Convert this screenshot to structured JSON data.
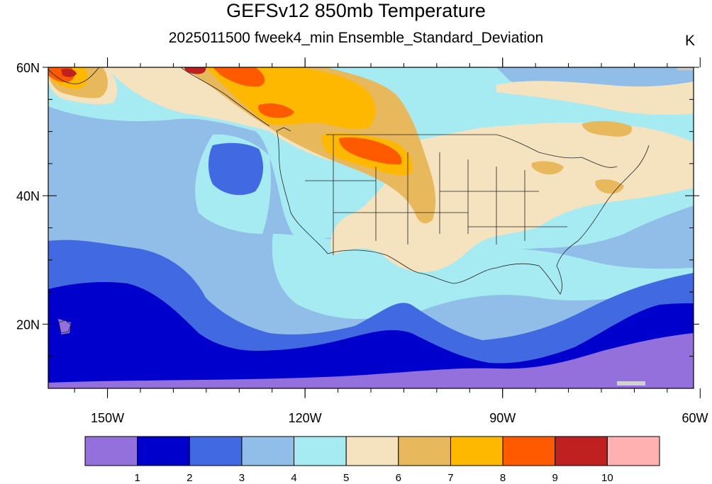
{
  "header": {
    "title": "GEFSv12 850mb Temperature",
    "subtitle": "2025011500 fweek4_min Ensemble_Standard_Deviation",
    "units": "K"
  },
  "axes": {
    "lat_labels": [
      "60N",
      "40N",
      "20N"
    ],
    "lat_values": [
      60,
      40,
      20
    ],
    "lon_labels": [
      "150W",
      "120W",
      "90W",
      "60W"
    ],
    "lon_values": [
      -150,
      -120,
      -90,
      -60
    ],
    "lon_range": [
      -159,
      -61
    ],
    "lat_range": [
      10,
      60
    ]
  },
  "colorbar": {
    "colors": [
      "#9370db",
      "#0000cd",
      "#4169e1",
      "#90bee8",
      "#a6ebf2",
      "#f5e3bf",
      "#e8b85c",
      "#ffb800",
      "#ff5a00",
      "#bf2020",
      "#ffb0b0"
    ],
    "labels": [
      "1",
      "2",
      "3",
      "4",
      "5",
      "6",
      "7",
      "8",
      "9",
      "10"
    ]
  }
}
